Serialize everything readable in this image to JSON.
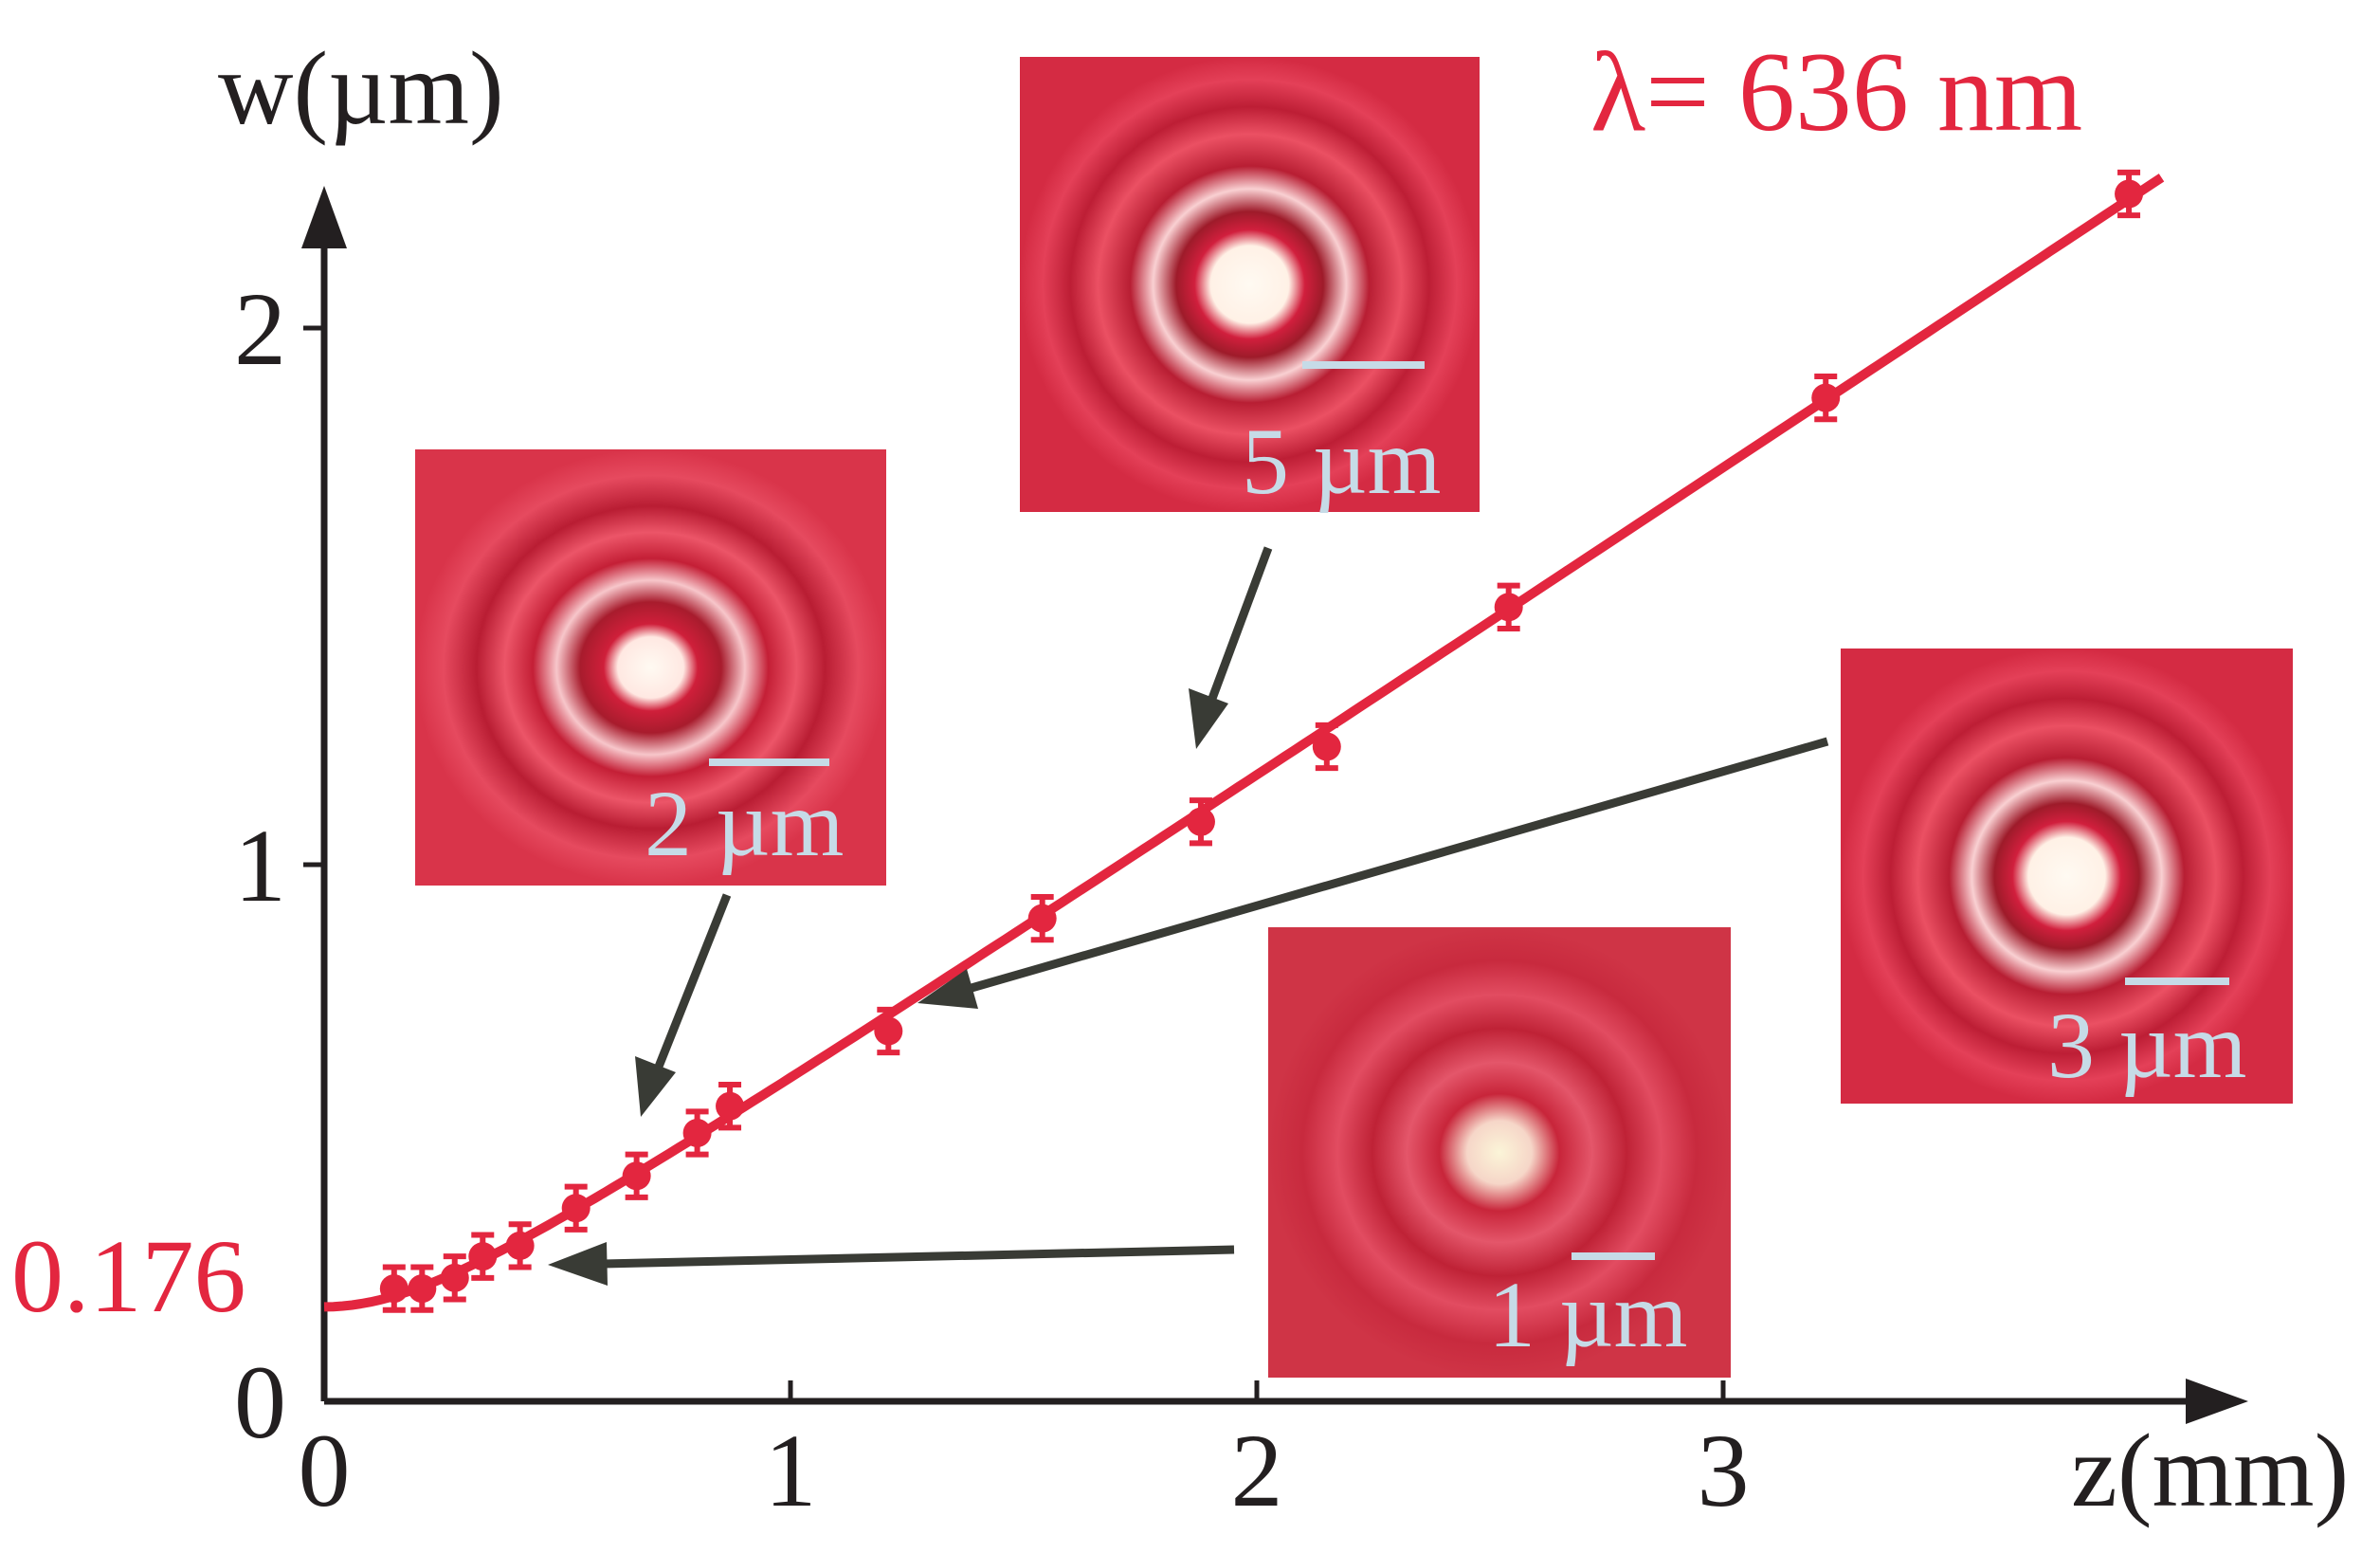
{
  "chart_data": {
    "type": "scatter",
    "xlabel": "z(mm)",
    "ylabel": "w(µm)",
    "xlim": [
      0,
      4.1
    ],
    "ylim": [
      0,
      2.3
    ],
    "xticks": [
      0,
      1,
      2,
      3
    ],
    "xtick_labels": [
      "0",
      "1",
      "2",
      "3"
    ],
    "yticks": [
      0,
      1,
      2
    ],
    "ytick_labels": [
      "0",
      "1",
      "2"
    ],
    "waist_label": "0.176",
    "wavelength_label": "λ= 636 nm",
    "series": [
      {
        "kind": "measured",
        "points": [
          {
            "x": 0.15,
            "y": 0.21,
            "err": 0.04
          },
          {
            "x": 0.21,
            "y": 0.21,
            "err": 0.04
          },
          {
            "x": 0.28,
            "y": 0.23,
            "err": 0.04
          },
          {
            "x": 0.34,
            "y": 0.27,
            "err": 0.04
          },
          {
            "x": 0.42,
            "y": 0.29,
            "err": 0.04
          },
          {
            "x": 0.54,
            "y": 0.36,
            "err": 0.04
          },
          {
            "x": 0.67,
            "y": 0.42,
            "err": 0.04
          },
          {
            "x": 0.8,
            "y": 0.5,
            "err": 0.04
          },
          {
            "x": 0.87,
            "y": 0.55,
            "err": 0.04
          },
          {
            "x": 1.21,
            "y": 0.69,
            "err": 0.04
          },
          {
            "x": 1.54,
            "y": 0.9,
            "err": 0.04
          },
          {
            "x": 1.88,
            "y": 1.08,
            "err": 0.04
          },
          {
            "x": 2.15,
            "y": 1.22,
            "err": 0.04
          },
          {
            "x": 2.54,
            "y": 1.48,
            "err": 0.04
          },
          {
            "x": 3.22,
            "y": 1.87,
            "err": 0.04
          },
          {
            "x": 3.87,
            "y": 2.25,
            "err": 0.04
          }
        ]
      },
      {
        "kind": "fit",
        "waist_w0": 0.176,
        "note_unused": null
      }
    ]
  },
  "insets": [
    {
      "scale_label": "5 µm",
      "z": 1.88
    },
    {
      "scale_label": "2 µm",
      "z": 0.67
    },
    {
      "scale_label": "3 µm",
      "z": 1.21
    },
    {
      "scale_label": "1 µm",
      "z": 0.42
    }
  ],
  "colors": {
    "accent": "#e3263f",
    "axis": "#231f20",
    "pointer": "#393b35",
    "scale": "#c6dbe7"
  }
}
